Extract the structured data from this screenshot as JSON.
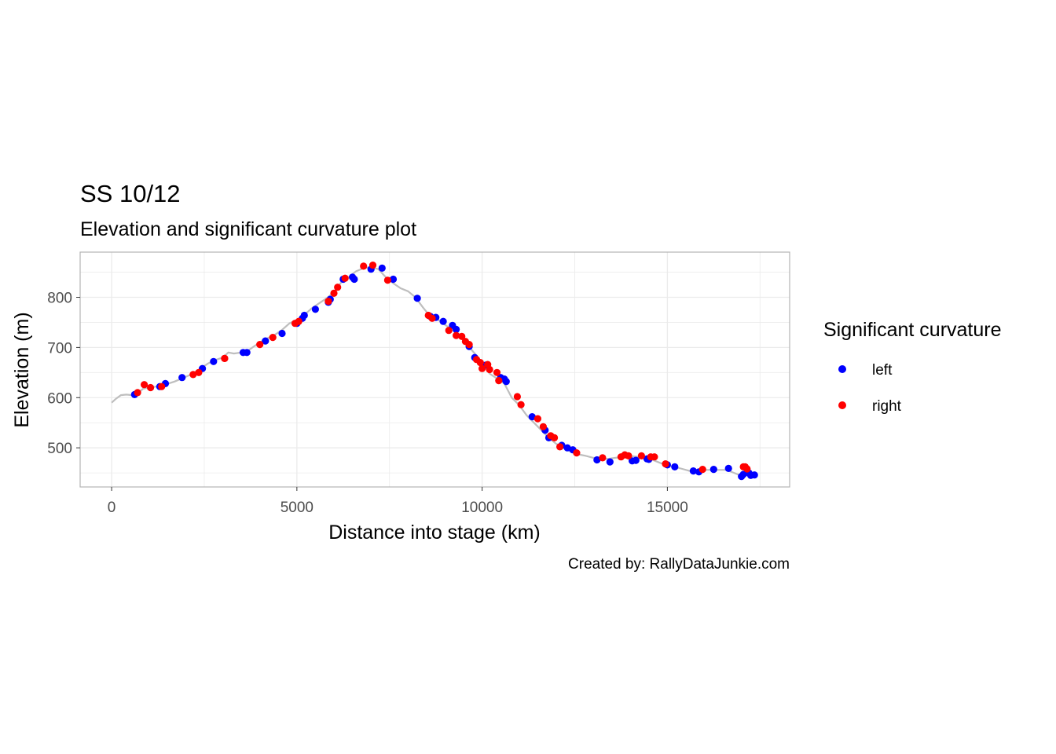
{
  "chart_data": {
    "type": "scatter",
    "title": "SS 10/12",
    "subtitle": "Elevation and significant curvature plot",
    "xlabel": "Distance into stage (km)",
    "ylabel": "Elevation (m)",
    "caption": "Created by: RallyDataJunkie.com",
    "xlim": [
      -850,
      18300
    ],
    "ylim": [
      422,
      890
    ],
    "x_ticks": [
      0,
      5000,
      10000,
      15000
    ],
    "y_ticks": [
      500,
      600,
      700,
      800
    ],
    "x_tick_labels": [
      "0",
      "5000",
      "10000",
      "15000"
    ],
    "y_tick_labels": [
      "500",
      "600",
      "700",
      "800"
    ],
    "grid": true,
    "legend": {
      "title": "Significant curvature",
      "position": "right",
      "entries": [
        {
          "label": "left",
          "color": "#0000ff"
        },
        {
          "label": "right",
          "color": "#ff0000"
        }
      ]
    },
    "elevation_line": {
      "color": "#bebebe",
      "x": [
        0,
        120,
        250,
        400,
        550,
        700,
        850,
        1000,
        1200,
        1400,
        1700,
        1950,
        2200,
        2400,
        2600,
        2800,
        3000,
        3150,
        3300,
        3500,
        3650,
        3800,
        4000,
        4200,
        4400,
        4600,
        4800,
        5000,
        5200,
        5400,
        5600,
        5800,
        6000,
        6200,
        6400,
        6600,
        6800,
        7000,
        7200,
        7400,
        7600,
        7800,
        8000,
        8200,
        8400,
        8600,
        8800,
        9000,
        9200,
        9400,
        9600,
        9800,
        10000,
        10200,
        10400,
        10600,
        10800,
        11000,
        11200,
        11400,
        11600,
        11800,
        12000,
        12200,
        12400,
        12600,
        12800,
        13000,
        13200,
        13400,
        13600,
        13800,
        14000,
        14200,
        14400,
        14600,
        14800,
        15000,
        15200,
        15400,
        15600,
        15800,
        16000,
        16200,
        16400,
        16600,
        16800,
        17000,
        17100,
        17200,
        17350
      ],
      "y": [
        590,
        598,
        605,
        606,
        605,
        608,
        618,
        620,
        622,
        625,
        632,
        640,
        648,
        658,
        668,
        675,
        680,
        690,
        688,
        690,
        692,
        700,
        710,
        718,
        725,
        735,
        748,
        755,
        765,
        778,
        788,
        798,
        810,
        830,
        840,
        852,
        858,
        860,
        856,
        840,
        828,
        818,
        812,
        800,
        780,
        762,
        756,
        745,
        735,
        722,
        705,
        688,
        668,
        648,
        638,
        628,
        600,
        585,
        565,
        550,
        535,
        520,
        508,
        500,
        492,
        487,
        484,
        480,
        478,
        478,
        480,
        482,
        484,
        482,
        478,
        476,
        470,
        465,
        462,
        458,
        454,
        454,
        456,
        456,
        456,
        456,
        450,
        444,
        450,
        446,
        446
      ]
    },
    "series": [
      {
        "name": "left",
        "color": "#0000ff",
        "x": [
          620,
          1300,
          1450,
          1900,
          2450,
          2750,
          3550,
          3650,
          4150,
          4600,
          5000,
          5150,
          5200,
          5500,
          5850,
          5900,
          6250,
          6500,
          6550,
          7000,
          7300,
          7600,
          8250,
          8600,
          8750,
          8950,
          9200,
          9300,
          9650,
          9800,
          10100,
          10500,
          10600,
          10650,
          11350,
          11700,
          11800,
          12150,
          12300,
          12450,
          13100,
          13450,
          14050,
          14150,
          14450,
          14500,
          15000,
          15200,
          15700,
          15850,
          16250,
          16650,
          17000,
          17050,
          17200,
          17250,
          17350
        ],
        "y": [
          606,
          622,
          628,
          640,
          658,
          672,
          690,
          690,
          713,
          728,
          748,
          758,
          764,
          776,
          790,
          796,
          836,
          840,
          836,
          856,
          858,
          836,
          798,
          762,
          760,
          752,
          744,
          736,
          702,
          680,
          665,
          640,
          637,
          632,
          562,
          535,
          520,
          505,
          500,
          496,
          476,
          472,
          474,
          475,
          478,
          477,
          466,
          462,
          454,
          452,
          457,
          459,
          443,
          447,
          450,
          445,
          446
        ]
      },
      {
        "name": "right",
        "color": "#ff0000",
        "x": [
          700,
          880,
          1050,
          1350,
          2200,
          2350,
          3050,
          3050,
          4000,
          4350,
          4950,
          5050,
          5850,
          6000,
          6100,
          6300,
          6800,
          7050,
          7450,
          8550,
          8650,
          9100,
          9300,
          9450,
          9550,
          9650,
          9850,
          9950,
          10000,
          10150,
          10200,
          10400,
          10450,
          10950,
          11050,
          11500,
          11650,
          11850,
          11950,
          12100,
          12550,
          13250,
          13750,
          13850,
          13950,
          14300,
          14550,
          14650,
          14950,
          15950,
          17050,
          17100,
          17150
        ],
        "y": [
          610,
          626,
          620,
          622,
          646,
          650,
          678,
          678,
          706,
          720,
          748,
          752,
          792,
          808,
          820,
          838,
          862,
          864,
          834,
          764,
          758,
          734,
          724,
          722,
          712,
          706,
          676,
          670,
          658,
          666,
          656,
          650,
          634,
          602,
          586,
          558,
          542,
          524,
          520,
          502,
          490,
          480,
          482,
          486,
          484,
          484,
          482,
          482,
          468,
          457,
          462,
          462,
          458
        ]
      }
    ]
  }
}
